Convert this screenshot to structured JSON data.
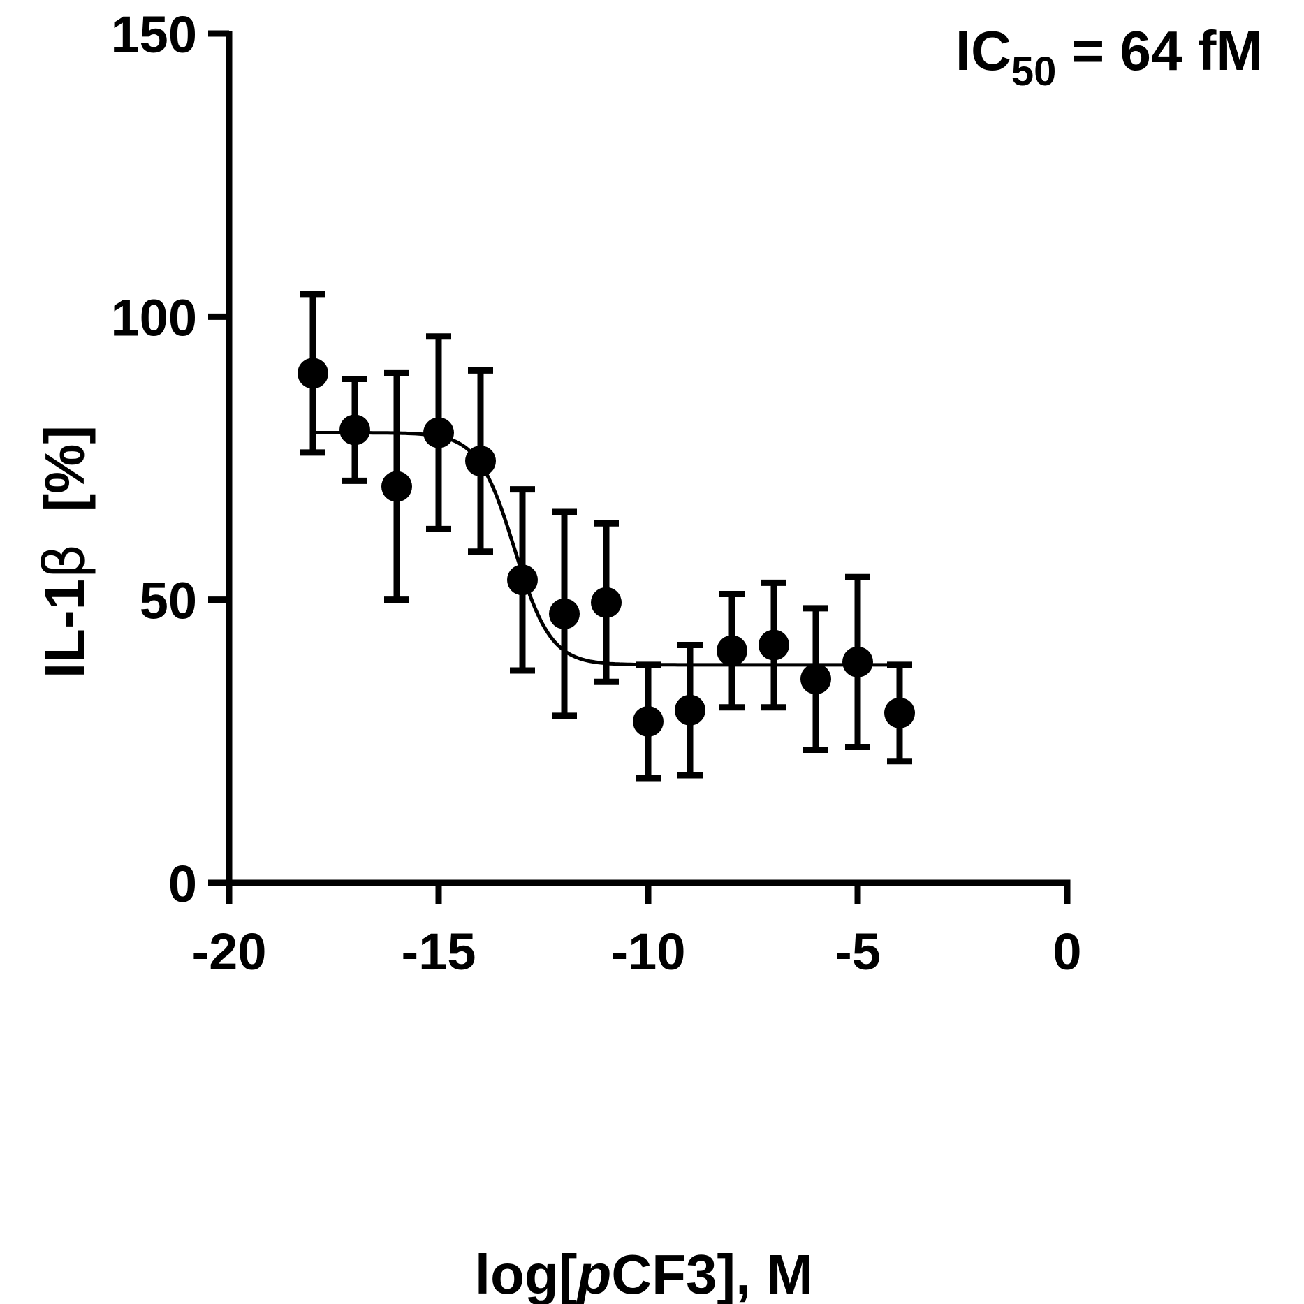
{
  "chart_data": {
    "type": "scatter",
    "xlabel_parts": [
      "log[",
      "p",
      "CF3], M"
    ],
    "ylabel_parts": [
      "IL-1",
      "β",
      "  [%]"
    ],
    "annotation": {
      "main": "IC",
      "sub": "50",
      "rest": " = 64 fM"
    },
    "xlim": [
      -20,
      0
    ],
    "ylim": [
      0,
      150
    ],
    "x_ticks": [
      -20,
      -15,
      -10,
      -5,
      0
    ],
    "y_ticks": [
      0,
      50,
      100,
      150
    ],
    "x_tick_labels": [
      "-20",
      "-15",
      "-10",
      "-5",
      "0"
    ],
    "y_tick_labels": [
      "0",
      "50",
      "100",
      "150"
    ],
    "grid": false,
    "series": [
      {
        "points": [
          {
            "x": -18,
            "y": 90,
            "err": 14
          },
          {
            "x": -17,
            "y": 80,
            "err": 9
          },
          {
            "x": -16,
            "y": 70,
            "err": 20
          },
          {
            "x": -15,
            "y": 79.5,
            "err": 17
          },
          {
            "x": -14,
            "y": 74.5,
            "err": 16
          },
          {
            "x": -13,
            "y": 53.5,
            "err": 16
          },
          {
            "x": -12,
            "y": 47.5,
            "err": 18
          },
          {
            "x": -11,
            "y": 49.5,
            "err": 14
          },
          {
            "x": -10,
            "y": 28.5,
            "err": 10
          },
          {
            "x": -9,
            "y": 30.5,
            "err": 11.5
          },
          {
            "x": -8,
            "y": 41,
            "err": 10
          },
          {
            "x": -7,
            "y": 42,
            "err": 11
          },
          {
            "x": -6,
            "y": 36,
            "err": 12.5
          },
          {
            "x": -5,
            "y": 39,
            "err": 15
          },
          {
            "x": -4,
            "y": 30,
            "err": 8.5
          }
        ]
      }
    ],
    "fit_curve": {
      "top": 79.5,
      "bottom": 38.5,
      "logIC50": -13.19,
      "hill_slope": -1,
      "x_range": [
        -18,
        -3.7
      ]
    }
  }
}
